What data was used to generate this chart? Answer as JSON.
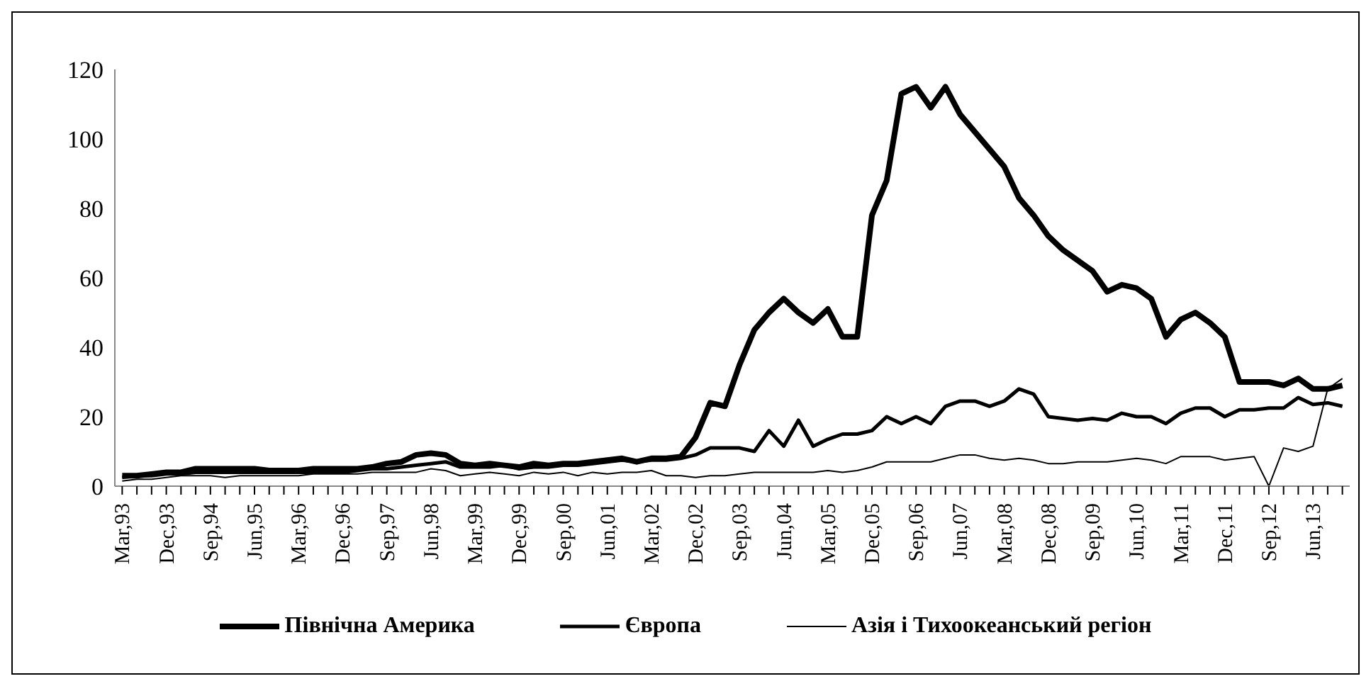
{
  "chart_data": {
    "type": "line",
    "categories": [
      "Mar,93",
      null,
      null,
      "Dec,93",
      null,
      null,
      "Sep,94",
      null,
      null,
      "Jun,95",
      null,
      null,
      "Mar,96",
      null,
      null,
      "Dec,96",
      null,
      null,
      "Sep,97",
      null,
      null,
      "Jun,98",
      null,
      null,
      "Mar,99",
      null,
      null,
      "Dec,99",
      null,
      null,
      "Sep,00",
      null,
      null,
      "Jun,01",
      null,
      null,
      "Mar,02",
      null,
      null,
      "Dec,02",
      null,
      null,
      "Sep,03",
      null,
      null,
      "Jun,04",
      null,
      null,
      "Mar,05",
      null,
      null,
      "Dec,05",
      null,
      null,
      "Sep,06",
      null,
      null,
      "Jun,07",
      null,
      null,
      "Mar,08",
      null,
      null,
      "Dec,08",
      null,
      null,
      "Sep,09",
      null,
      null,
      "Jun,10",
      null,
      null,
      "Mar,11",
      null,
      null,
      "Dec,11",
      null,
      null,
      "Sep,12",
      null,
      null,
      "Jun,13",
      null,
      null
    ],
    "series": [
      {
        "name": "Північна Америка",
        "color": "#000000",
        "values": [
          3,
          3,
          3.5,
          4,
          4,
          5,
          5,
          5,
          5,
          5,
          4.5,
          4.5,
          4.5,
          5,
          5,
          5,
          5,
          5.5,
          6.5,
          7,
          9,
          9.5,
          9,
          6.5,
          6,
          6.5,
          6,
          5.5,
          6.5,
          6,
          6.5,
          6.5,
          7,
          7.5,
          8,
          7,
          8,
          8,
          8.5,
          14,
          24,
          23,
          35,
          45,
          50,
          54,
          50,
          47,
          51,
          43,
          43,
          78,
          88,
          113,
          115,
          109,
          115,
          107,
          102,
          97,
          92,
          83,
          78,
          72,
          68,
          65,
          62,
          56,
          58,
          57,
          54,
          43,
          48,
          50,
          47,
          43,
          30,
          30,
          30,
          29,
          31,
          28,
          28,
          29
        ]
      },
      {
        "name": "Європа",
        "color": "#000000",
        "values": [
          2.5,
          3,
          3,
          3.5,
          3.5,
          4,
          4,
          4,
          4,
          4,
          4,
          4,
          4,
          4,
          4,
          4,
          4.5,
          5,
          5,
          5.5,
          6,
          6.5,
          7,
          5.5,
          5.5,
          5.5,
          6,
          5,
          5.5,
          5.5,
          6,
          6,
          6.5,
          7,
          7.5,
          7,
          7.5,
          7.5,
          8,
          9,
          11,
          11,
          11,
          10,
          16,
          11.5,
          19,
          11.5,
          13.5,
          15,
          15,
          16,
          20,
          18,
          20,
          18,
          23,
          24.5,
          24.5,
          23,
          24.5,
          28,
          26.5,
          20,
          19.5,
          19,
          19.5,
          19,
          21,
          20,
          20,
          18,
          21,
          22.5,
          22.5,
          20,
          22,
          22,
          22.5,
          22.5,
          25.5,
          23.5,
          24,
          23
        ]
      },
      {
        "name": "Азія і Тихоокеанський регіон",
        "color": "#000000",
        "values": [
          1.5,
          2,
          2,
          2.5,
          3,
          3,
          3,
          2.5,
          3,
          3,
          3,
          3,
          3,
          3.5,
          3.5,
          3.5,
          3.5,
          4,
          4,
          4,
          4,
          5,
          4.5,
          3,
          3.5,
          4,
          3.5,
          3,
          4,
          3.5,
          4,
          3,
          4,
          3.5,
          4,
          4,
          4.5,
          3,
          3,
          2.5,
          3,
          3,
          3.5,
          4,
          4,
          4,
          4,
          4,
          4.5,
          4,
          4.5,
          5.5,
          7,
          7,
          7,
          7,
          8,
          9,
          9,
          8,
          7.5,
          8,
          7.5,
          6.5,
          6.5,
          7,
          7,
          7,
          7.5,
          8,
          7.5,
          6.5,
          8.5,
          8.5,
          8.5,
          7.5,
          8,
          8.5,
          0,
          11,
          10,
          11.5,
          28,
          31
        ]
      }
    ],
    "ylim": [
      0,
      120
    ],
    "yticks": [
      0,
      20,
      40,
      60,
      80,
      100,
      120
    ],
    "legend": "bottom",
    "marker": "none",
    "line_style": "solid"
  }
}
